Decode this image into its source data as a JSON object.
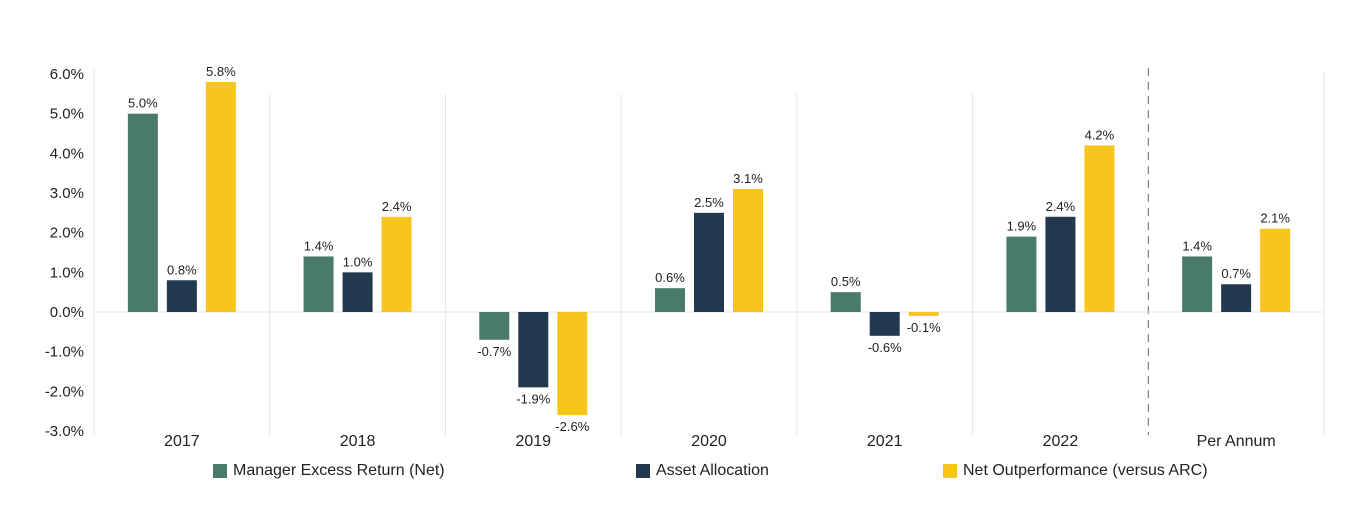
{
  "chart_data": {
    "type": "bar",
    "title": "",
    "xlabel": "",
    "ylabel": "",
    "ylim": [
      -3.0,
      6.0
    ],
    "yticks": [
      "6.0%",
      "5.0%",
      "4.0%",
      "3.0%",
      "2.0%",
      "1.0%",
      "0.0%",
      "-1.0%",
      "-2.0%",
      "-3.0%"
    ],
    "ytick_values": [
      6,
      5,
      4,
      3,
      2,
      1,
      0,
      -1,
      -2,
      -3
    ],
    "categories": [
      "2017",
      "2018",
      "2019",
      "2020",
      "2021",
      "2022",
      "Per Annum"
    ],
    "series": [
      {
        "name": "Manager Excess Return (Net)",
        "color": "#4a7a6a",
        "values": [
          5.0,
          1.4,
          -0.7,
          0.6,
          0.5,
          1.9,
          1.4
        ],
        "labels": [
          "5.0%",
          "1.4%",
          "-0.7%",
          "0.6%",
          "0.5%",
          "1.9%",
          "1.4%"
        ]
      },
      {
        "name": "Asset Allocation",
        "color": "#22384f",
        "values": [
          0.8,
          1.0,
          -1.9,
          2.5,
          -0.6,
          2.4,
          0.7
        ],
        "labels": [
          "0.8%",
          "1.0%",
          "-1.9%",
          "2.5%",
          "-0.6%",
          "2.4%",
          "0.7%"
        ]
      },
      {
        "name": "Net Outperformance (versus ARC)",
        "color": "#f8c51c",
        "values": [
          5.8,
          2.4,
          -2.6,
          3.1,
          -0.1,
          4.2,
          2.1
        ],
        "labels": [
          "5.8%",
          "2.4%",
          "-2.6%",
          "3.1%",
          "-0.1%",
          "4.2%",
          "2.1%"
        ]
      }
    ],
    "legend_position": "bottom",
    "separator_before_category": "Per Annum"
  }
}
